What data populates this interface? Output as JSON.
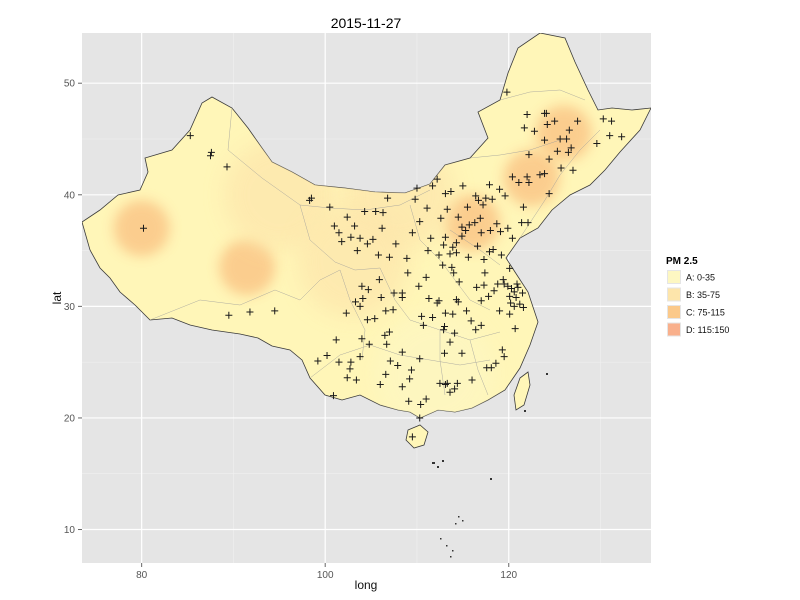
{
  "title": "2015-11-27",
  "xlabel": "long",
  "ylabel": "lat",
  "x_ticks": [
    "80",
    "100",
    "120"
  ],
  "y_ticks": [
    "10",
    "20",
    "30",
    "40",
    "50"
  ],
  "legend": {
    "title": "PM 2.5",
    "items": [
      {
        "label": "A: 0-35",
        "color": "#fdf7c2"
      },
      {
        "label": "B: 35-75",
        "color": "#fde5ab"
      },
      {
        "label": "C: 75-115",
        "color": "#fbc98a"
      },
      {
        "label": "D: 115:150",
        "color": "#f9b08c"
      }
    ]
  },
  "colors": {
    "panel": "#e5e5e5",
    "grid": "#ffffff",
    "china_fill": "#fff6b8"
  },
  "chart_data": {
    "type": "map",
    "xlim": [
      73.5,
      135.5
    ],
    "ylim": [
      7,
      54.5
    ],
    "grid": true,
    "legend_position": "right",
    "stations": [
      [
        85.3,
        45.3
      ],
      [
        87.6,
        43.8
      ],
      [
        87.5,
        43.5
      ],
      [
        89.3,
        42.5
      ],
      [
        80.2,
        37.0
      ],
      [
        91.8,
        29.5
      ],
      [
        89.5,
        29.2
      ],
      [
        94.5,
        29.6
      ],
      [
        98.5,
        39.7
      ],
      [
        98.3,
        39.5
      ],
      [
        101.0,
        37.2
      ],
      [
        102.8,
        36.2
      ],
      [
        103.8,
        36.1
      ],
      [
        104.3,
        38.5
      ],
      [
        101.5,
        36.6
      ],
      [
        100.5,
        38.9
      ],
      [
        105.5,
        38.5
      ],
      [
        106.3,
        38.4
      ],
      [
        106.2,
        37.0
      ],
      [
        107.7,
        35.6
      ],
      [
        105.8,
        34.6
      ],
      [
        104.6,
        35.6
      ],
      [
        109.5,
        36.6
      ],
      [
        108.9,
        34.3
      ],
      [
        109.0,
        33.0
      ],
      [
        107.0,
        34.4
      ],
      [
        110.3,
        37.6
      ],
      [
        111.7,
        40.8
      ],
      [
        110.0,
        40.6
      ],
      [
        109.8,
        39.6
      ],
      [
        106.8,
        39.7
      ],
      [
        113.1,
        40.1
      ],
      [
        112.6,
        37.9
      ],
      [
        112.9,
        35.5
      ],
      [
        111.5,
        36.1
      ],
      [
        113.1,
        36.2
      ],
      [
        114.5,
        38.0
      ],
      [
        115.5,
        38.9
      ],
      [
        116.4,
        39.9
      ],
      [
        116.7,
        39.5
      ],
      [
        117.2,
        39.1
      ],
      [
        118.2,
        39.6
      ],
      [
        119.6,
        39.9
      ],
      [
        117.9,
        40.9
      ],
      [
        115.0,
        40.8
      ],
      [
        114.9,
        37.1
      ],
      [
        114.3,
        35.7
      ],
      [
        113.6,
        34.7
      ],
      [
        114.3,
        34.8
      ],
      [
        112.4,
        34.6
      ],
      [
        114.0,
        33.0
      ],
      [
        115.6,
        34.4
      ],
      [
        117.0,
        36.6
      ],
      [
        118.0,
        36.8
      ],
      [
        119.1,
        36.7
      ],
      [
        120.4,
        36.1
      ],
      [
        121.4,
        37.5
      ],
      [
        122.1,
        37.5
      ],
      [
        116.6,
        35.4
      ],
      [
        117.3,
        34.2
      ],
      [
        118.3,
        35.1
      ],
      [
        119.2,
        34.6
      ],
      [
        120.1,
        33.4
      ],
      [
        119.4,
        32.4
      ],
      [
        118.8,
        32.0
      ],
      [
        120.9,
        32.0
      ],
      [
        120.6,
        31.3
      ],
      [
        121.5,
        31.2
      ],
      [
        120.3,
        31.6
      ],
      [
        119.9,
        31.8
      ],
      [
        120.2,
        30.3
      ],
      [
        121.6,
        29.9
      ],
      [
        120.6,
        30.0
      ],
      [
        120.1,
        29.3
      ],
      [
        120.7,
        28.0
      ],
      [
        119.0,
        29.6
      ],
      [
        117.3,
        31.9
      ],
      [
        116.5,
        31.7
      ],
      [
        118.4,
        31.4
      ],
      [
        117.0,
        30.5
      ],
      [
        117.4,
        33.0
      ],
      [
        114.3,
        30.6
      ],
      [
        112.2,
        30.3
      ],
      [
        111.3,
        30.7
      ],
      [
        113.0,
        28.2
      ],
      [
        112.9,
        27.9
      ],
      [
        113.1,
        29.4
      ],
      [
        111.7,
        29.0
      ],
      [
        110.5,
        29.1
      ],
      [
        113.6,
        26.8
      ],
      [
        115.9,
        28.7
      ],
      [
        114.9,
        25.8
      ],
      [
        116.4,
        27.9
      ],
      [
        117.0,
        28.3
      ],
      [
        118.1,
        24.5
      ],
      [
        119.3,
        26.1
      ],
      [
        118.6,
        24.9
      ],
      [
        117.6,
        24.5
      ],
      [
        119.5,
        25.5
      ],
      [
        116.0,
        23.4
      ],
      [
        113.3,
        23.1
      ],
      [
        114.1,
        22.6
      ],
      [
        113.6,
        22.3
      ],
      [
        113.1,
        23.0
      ],
      [
        114.4,
        23.1
      ],
      [
        112.5,
        23.1
      ],
      [
        110.4,
        21.2
      ],
      [
        111.0,
        21.7
      ],
      [
        110.3,
        25.3
      ],
      [
        109.4,
        24.3
      ],
      [
        108.4,
        22.8
      ],
      [
        109.1,
        21.5
      ],
      [
        110.3,
        20.0
      ],
      [
        109.5,
        18.3
      ],
      [
        106.7,
        26.6
      ],
      [
        104.8,
        26.6
      ],
      [
        107.0,
        27.7
      ],
      [
        106.6,
        29.6
      ],
      [
        107.4,
        29.7
      ],
      [
        108.4,
        30.8
      ],
      [
        104.1,
        30.7
      ],
      [
        104.7,
        31.5
      ],
      [
        103.8,
        30.0
      ],
      [
        104.6,
        28.8
      ],
      [
        105.4,
        28.9
      ],
      [
        106.1,
        30.8
      ],
      [
        105.9,
        32.4
      ],
      [
        102.8,
        25.0
      ],
      [
        103.8,
        25.5
      ],
      [
        100.2,
        25.6
      ],
      [
        100.9,
        22.0
      ],
      [
        103.4,
        23.4
      ],
      [
        99.2,
        25.1
      ],
      [
        102.7,
        24.4
      ],
      [
        101.5,
        25.0
      ],
      [
        106.6,
        23.9
      ],
      [
        107.9,
        24.7
      ],
      [
        106.0,
        23.0
      ],
      [
        113.7,
        40.3
      ],
      [
        112.2,
        41.4
      ],
      [
        123.4,
        41.8
      ],
      [
        123.9,
        41.9
      ],
      [
        122.2,
        41.1
      ],
      [
        121.6,
        38.9
      ],
      [
        121.1,
        41.1
      ],
      [
        122.0,
        41.6
      ],
      [
        124.4,
        40.1
      ],
      [
        120.4,
        41.6
      ],
      [
        125.3,
        43.9
      ],
      [
        126.5,
        43.8
      ],
      [
        124.4,
        43.2
      ],
      [
        122.2,
        43.6
      ],
      [
        126.6,
        45.8
      ],
      [
        127.5,
        46.6
      ],
      [
        129.6,
        44.6
      ],
      [
        130.3,
        46.8
      ],
      [
        131.2,
        46.6
      ],
      [
        132.3,
        45.2
      ],
      [
        125.0,
        46.6
      ],
      [
        124.1,
        47.3
      ],
      [
        123.9,
        44.9
      ],
      [
        125.6,
        45.0
      ],
      [
        123.9,
        47.3
      ],
      [
        122.8,
        45.7
      ],
      [
        126.3,
        45.0
      ],
      [
        131.0,
        45.3
      ],
      [
        121.7,
        46.0
      ],
      [
        119.8,
        49.2
      ],
      [
        126.8,
        44.2
      ],
      [
        127.0,
        42.2
      ],
      [
        125.7,
        42.4
      ],
      [
        124.2,
        46.3
      ],
      [
        122.0,
        47.2
      ],
      [
        117.5,
        39.7
      ],
      [
        118.7,
        37.4
      ],
      [
        119.9,
        37.0
      ],
      [
        116.3,
        37.5
      ],
      [
        117.9,
        34.9
      ],
      [
        120.8,
        30.8
      ],
      [
        121.2,
        30.2
      ],
      [
        121.0,
        31.7
      ],
      [
        115.4,
        29.6
      ],
      [
        113.9,
        29.3
      ],
      [
        112.4,
        30.5
      ],
      [
        114.5,
        30.4
      ],
      [
        108.4,
        31.2
      ],
      [
        106.5,
        27.4
      ],
      [
        107.5,
        31.2
      ],
      [
        102.3,
        29.4
      ],
      [
        103.3,
        30.4
      ],
      [
        104.0,
        27.1
      ],
      [
        114.9,
        36.3
      ],
      [
        111.2,
        35.0
      ],
      [
        113.9,
        35.3
      ],
      [
        115.3,
        36.8
      ],
      [
        112.8,
        33.7
      ],
      [
        114.6,
        32.2
      ],
      [
        111.0,
        32.6
      ],
      [
        117.8,
        30.9
      ],
      [
        119.5,
        32.0
      ],
      [
        120.1,
        30.9
      ],
      [
        101.2,
        27.0
      ],
      [
        109.2,
        23.5
      ],
      [
        108.4,
        25.9
      ],
      [
        107.1,
        25.1
      ],
      [
        102.4,
        23.6
      ],
      [
        114.1,
        27.6
      ],
      [
        113.0,
        25.8
      ],
      [
        110.2,
        31.8
      ],
      [
        104.0,
        31.8
      ],
      [
        103.5,
        35.0
      ],
      [
        105.2,
        36.0
      ],
      [
        110.7,
        28.3
      ],
      [
        113.8,
        33.5
      ],
      [
        119.0,
        40.5
      ],
      [
        116.9,
        37.9
      ],
      [
        115.7,
        37.3
      ],
      [
        113.3,
        38.7
      ],
      [
        111.1,
        38.8
      ],
      [
        101.8,
        35.8
      ],
      [
        102.4,
        38.0
      ],
      [
        103.2,
        37.2
      ]
    ],
    "pollution_zones": [
      {
        "level": "C: 75-115",
        "center": [
          116.0,
          37.5
        ]
      },
      {
        "level": "C: 75-115",
        "center": [
          122.5,
          41.5
        ]
      },
      {
        "level": "C: 75-115",
        "center": [
          126.0,
          45.5
        ]
      },
      {
        "level": "C: 75-115",
        "center": [
          80.0,
          37.0
        ]
      },
      {
        "level": "C: 75-115",
        "center": [
          91.5,
          33.5
        ]
      },
      {
        "level": "B: 35-75",
        "center": [
          95.0,
          40.0
        ]
      },
      {
        "level": "B: 35-75",
        "center": [
          108.0,
          40.0
        ]
      },
      {
        "level": "B: 35-75",
        "center": [
          103.0,
          34.0
        ]
      },
      {
        "level": "A: 0-35",
        "center": [
          112.0,
          24.0
        ]
      }
    ]
  }
}
